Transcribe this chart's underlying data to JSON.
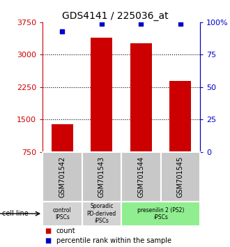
{
  "title": "GDS4141 / 225036_at",
  "samples": [
    "GSM701542",
    "GSM701543",
    "GSM701544",
    "GSM701545"
  ],
  "counts": [
    1390,
    3390,
    3270,
    2390
  ],
  "percentiles": [
    93,
    99,
    99,
    99
  ],
  "bar_color": "#cc0000",
  "dot_color": "#0000cc",
  "ylim_left": [
    750,
    3750
  ],
  "ylim_right": [
    0,
    100
  ],
  "yticks_left": [
    750,
    1500,
    2250,
    3000,
    3750
  ],
  "yticks_right": [
    0,
    25,
    50,
    75,
    100
  ],
  "ytick_labels_right": [
    "0",
    "25",
    "50",
    "75",
    "100%"
  ],
  "gridlines": [
    1500,
    2250,
    3000
  ],
  "cell_line_groups": [
    {
      "label": "control\nIPSCs",
      "start": 0,
      "end": 1,
      "color": "#d3d3d3"
    },
    {
      "label": "Sporadic\nPD-derived\niPSCs",
      "start": 1,
      "end": 2,
      "color": "#d3d3d3"
    },
    {
      "label": "presenilin 2 (PS2)\niPSCs",
      "start": 2,
      "end": 4,
      "color": "#90ee90"
    }
  ],
  "legend_items": [
    {
      "color": "#cc0000",
      "label": "count"
    },
    {
      "color": "#0000cc",
      "label": "percentile rank within the sample"
    }
  ],
  "cell_line_label": "cell line",
  "left_axis_color": "#cc0000",
  "right_axis_color": "#0000cc",
  "background_color": "#ffffff",
  "plot_bg_color": "#ffffff",
  "bar_width": 0.55,
  "sample_box_color": "#c8c8c8",
  "sample_box_edge_color": "#ffffff"
}
